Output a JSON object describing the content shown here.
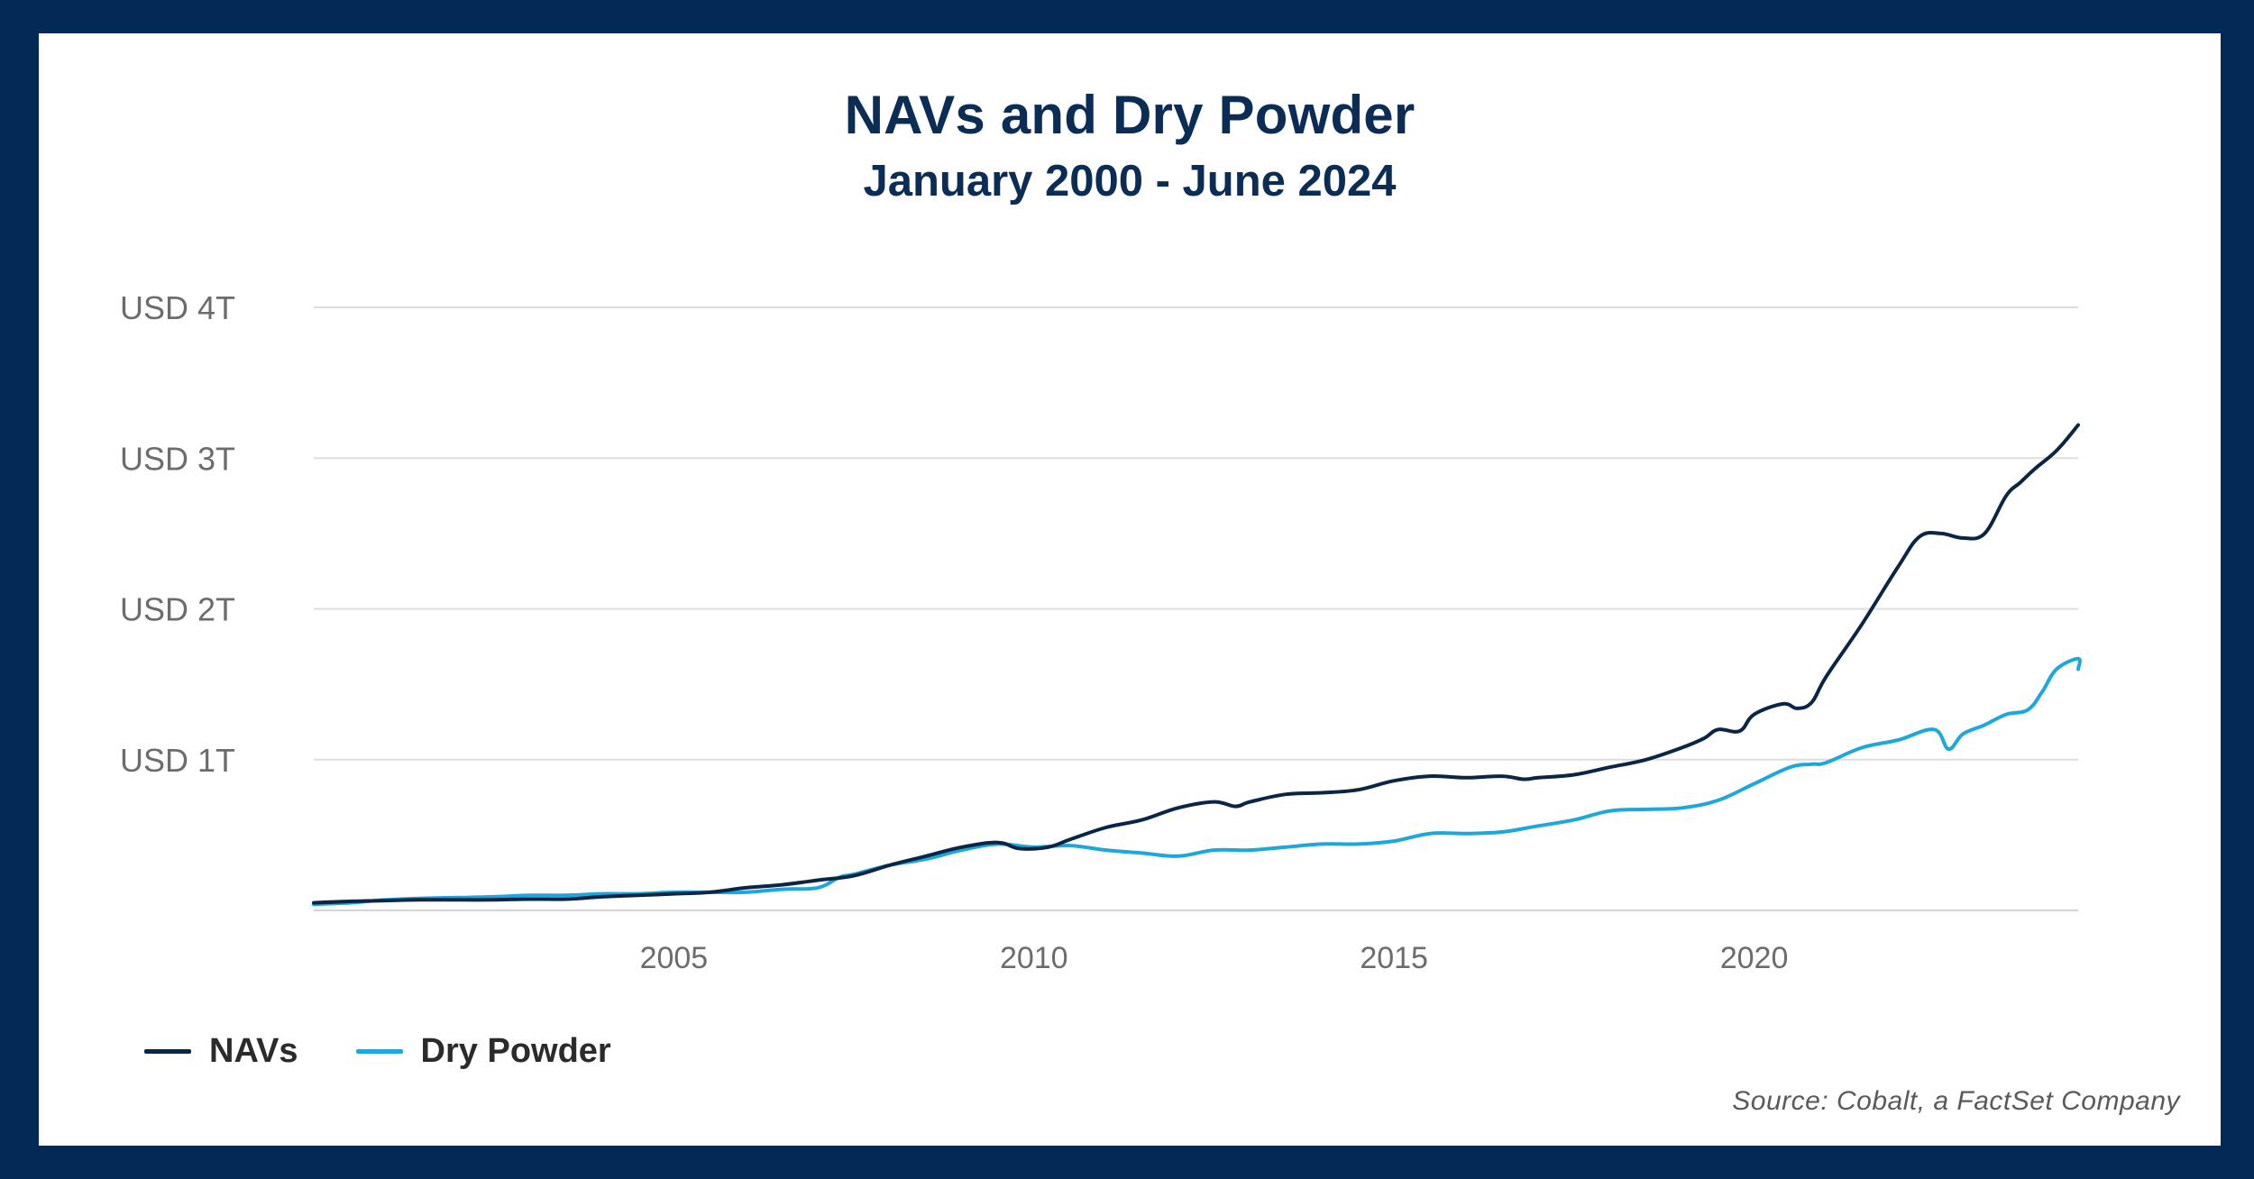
{
  "chart_data": {
    "type": "line",
    "title": "NAVs and Dry Powder",
    "subtitle": "January 2000 - June 2024",
    "source": "Source: Cobalt, a FactSet Company",
    "xlim": [
      2000.0,
      2024.5
    ],
    "ylim": [
      0,
      4
    ],
    "y_unit": "USD trillions",
    "y_ticks": [
      {
        "value": 1,
        "label": "USD 1T"
      },
      {
        "value": 2,
        "label": "USD 2T"
      },
      {
        "value": 3,
        "label": "USD 3T"
      },
      {
        "value": 4,
        "label": "USD 4T"
      }
    ],
    "x_ticks": [
      {
        "value": 2005,
        "label": "2005"
      },
      {
        "value": 2010,
        "label": "2010"
      },
      {
        "value": 2015,
        "label": "2015"
      },
      {
        "value": 2020,
        "label": "2020"
      }
    ],
    "grid": true,
    "legend_position": "bottom-left",
    "series": [
      {
        "name": "NAVs",
        "color": "#0b2545",
        "points": [
          [
            2000.0,
            0.05
          ],
          [
            2000.5,
            0.06
          ],
          [
            2001.0,
            0.065
          ],
          [
            2001.5,
            0.07
          ],
          [
            2002.0,
            0.07
          ],
          [
            2002.5,
            0.07
          ],
          [
            2003.0,
            0.075
          ],
          [
            2003.5,
            0.075
          ],
          [
            2004.0,
            0.09
          ],
          [
            2004.5,
            0.1
          ],
          [
            2005.0,
            0.11
          ],
          [
            2005.5,
            0.12
          ],
          [
            2006.0,
            0.15
          ],
          [
            2006.5,
            0.17
          ],
          [
            2007.0,
            0.2
          ],
          [
            2007.5,
            0.23
          ],
          [
            2008.0,
            0.3
          ],
          [
            2008.5,
            0.36
          ],
          [
            2009.0,
            0.42
          ],
          [
            2009.5,
            0.45
          ],
          [
            2009.8,
            0.41
          ],
          [
            2010.2,
            0.42
          ],
          [
            2010.5,
            0.47
          ],
          [
            2011.0,
            0.55
          ],
          [
            2011.5,
            0.6
          ],
          [
            2012.0,
            0.68
          ],
          [
            2012.5,
            0.72
          ],
          [
            2012.8,
            0.69
          ],
          [
            2013.0,
            0.72
          ],
          [
            2013.5,
            0.77
          ],
          [
            2014.0,
            0.78
          ],
          [
            2014.5,
            0.8
          ],
          [
            2015.0,
            0.86
          ],
          [
            2015.5,
            0.89
          ],
          [
            2016.0,
            0.88
          ],
          [
            2016.5,
            0.89
          ],
          [
            2016.8,
            0.87
          ],
          [
            2017.0,
            0.88
          ],
          [
            2017.5,
            0.9
          ],
          [
            2018.0,
            0.95
          ],
          [
            2018.5,
            1.0
          ],
          [
            2019.0,
            1.08
          ],
          [
            2019.3,
            1.14
          ],
          [
            2019.5,
            1.2
          ],
          [
            2019.8,
            1.19
          ],
          [
            2020.0,
            1.3
          ],
          [
            2020.4,
            1.37
          ],
          [
            2020.6,
            1.34
          ],
          [
            2020.8,
            1.38
          ],
          [
            2021.0,
            1.55
          ],
          [
            2021.5,
            1.9
          ],
          [
            2022.0,
            2.28
          ],
          [
            2022.3,
            2.48
          ],
          [
            2022.6,
            2.5
          ],
          [
            2022.9,
            2.47
          ],
          [
            2023.2,
            2.5
          ],
          [
            2023.5,
            2.75
          ],
          [
            2023.7,
            2.84
          ],
          [
            2023.9,
            2.93
          ],
          [
            2024.2,
            3.05
          ],
          [
            2024.5,
            3.22
          ]
        ]
      },
      {
        "name": "Dry Powder",
        "color": "#1da7dc",
        "points": [
          [
            2000.0,
            0.04
          ],
          [
            2000.5,
            0.05
          ],
          [
            2001.0,
            0.07
          ],
          [
            2001.5,
            0.08
          ],
          [
            2002.0,
            0.085
          ],
          [
            2002.5,
            0.09
          ],
          [
            2003.0,
            0.1
          ],
          [
            2003.5,
            0.1
          ],
          [
            2004.0,
            0.11
          ],
          [
            2004.5,
            0.11
          ],
          [
            2005.0,
            0.12
          ],
          [
            2005.5,
            0.12
          ],
          [
            2006.0,
            0.12
          ],
          [
            2006.5,
            0.14
          ],
          [
            2007.0,
            0.15
          ],
          [
            2007.3,
            0.22
          ],
          [
            2007.5,
            0.24
          ],
          [
            2008.0,
            0.3
          ],
          [
            2008.5,
            0.34
          ],
          [
            2009.0,
            0.4
          ],
          [
            2009.5,
            0.44
          ],
          [
            2010.0,
            0.42
          ],
          [
            2010.5,
            0.43
          ],
          [
            2011.0,
            0.4
          ],
          [
            2011.5,
            0.38
          ],
          [
            2012.0,
            0.36
          ],
          [
            2012.5,
            0.4
          ],
          [
            2013.0,
            0.4
          ],
          [
            2013.5,
            0.42
          ],
          [
            2014.0,
            0.44
          ],
          [
            2014.5,
            0.44
          ],
          [
            2015.0,
            0.46
          ],
          [
            2015.5,
            0.51
          ],
          [
            2016.0,
            0.51
          ],
          [
            2016.5,
            0.52
          ],
          [
            2017.0,
            0.56
          ],
          [
            2017.5,
            0.6
          ],
          [
            2018.0,
            0.66
          ],
          [
            2018.5,
            0.67
          ],
          [
            2019.0,
            0.68
          ],
          [
            2019.5,
            0.73
          ],
          [
            2020.0,
            0.84
          ],
          [
            2020.5,
            0.95
          ],
          [
            2020.8,
            0.97
          ],
          [
            2021.0,
            0.98
          ],
          [
            2021.5,
            1.08
          ],
          [
            2022.0,
            1.13
          ],
          [
            2022.5,
            1.2
          ],
          [
            2022.7,
            1.07
          ],
          [
            2022.9,
            1.17
          ],
          [
            2023.2,
            1.23
          ],
          [
            2023.5,
            1.3
          ],
          [
            2023.8,
            1.33
          ],
          [
            2024.0,
            1.45
          ],
          [
            2024.2,
            1.6
          ],
          [
            2024.5,
            1.67
          ],
          [
            2024.5,
            1.6
          ]
        ]
      }
    ]
  }
}
